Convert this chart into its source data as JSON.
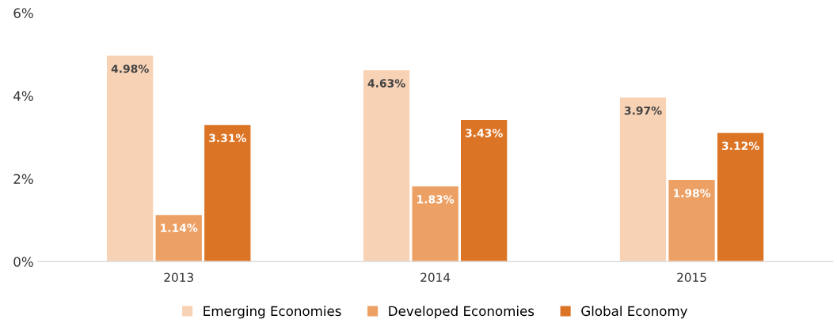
{
  "chart_data": {
    "type": "bar",
    "categories": [
      "2013",
      "2014",
      "2015"
    ],
    "series": [
      {
        "name": "Emerging Economies",
        "color": "#f7d2b5",
        "values": [
          4.98,
          4.63,
          3.97
        ],
        "value_labels": [
          "4.98%",
          "4.63%",
          "3.97%"
        ]
      },
      {
        "name": "Developed Economies",
        "color": "#eda064",
        "values": [
          1.14,
          1.83,
          1.98
        ],
        "value_labels": [
          "1.14%",
          "1.83%",
          "1.98%"
        ]
      },
      {
        "name": "Global Economy",
        "color": "#dc7426",
        "values": [
          3.31,
          3.43,
          3.12
        ],
        "value_labels": [
          "3.31%",
          "3.43%",
          "3.12%"
        ]
      }
    ],
    "ylim": [
      0,
      6
    ],
    "yticks": [
      {
        "value": 0,
        "label": "0%"
      },
      {
        "value": 2,
        "label": "2%"
      },
      {
        "value": 4,
        "label": "4%"
      },
      {
        "value": 6,
        "label": "6%"
      }
    ],
    "grid": false,
    "legend": "bottom"
  }
}
